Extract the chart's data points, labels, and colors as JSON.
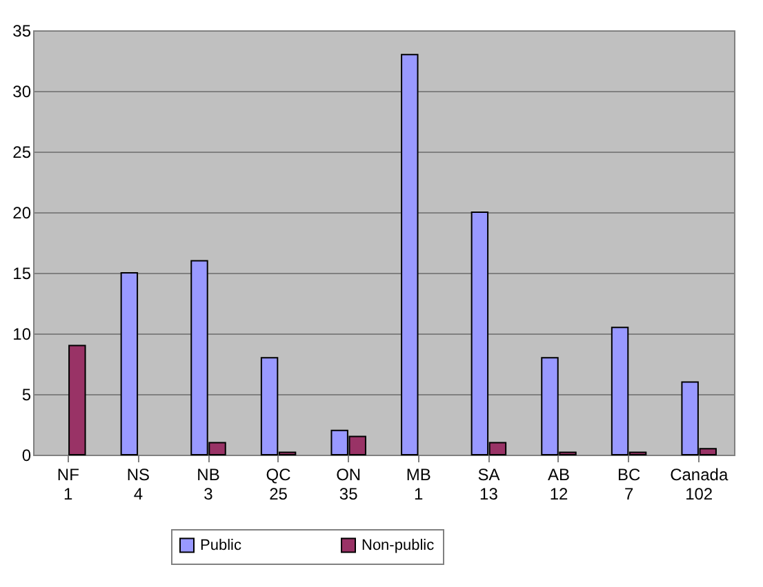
{
  "chart_data": {
    "type": "bar",
    "categories": [
      "NF\n1",
      "NS\n4",
      "NB\n3",
      "QC\n25",
      "ON\n35",
      "MB\n1",
      "SA\n13",
      "AB\n12",
      "BC\n7",
      "Canada\n102"
    ],
    "series": [
      {
        "name": "Public",
        "color": "#9999ff",
        "values": [
          null,
          15,
          16,
          8,
          2,
          33,
          20,
          8,
          10.5,
          6
        ]
      },
      {
        "name": "Non-public",
        "color": "#993366",
        "values": [
          9,
          null,
          1,
          0.2,
          1.5,
          null,
          1,
          0.2,
          0.2,
          0.5
        ]
      }
    ],
    "ylim": [
      0,
      35
    ],
    "yticks": [
      0,
      5,
      10,
      15,
      20,
      25,
      30,
      35
    ],
    "grid": "y",
    "legend": "bottom"
  }
}
